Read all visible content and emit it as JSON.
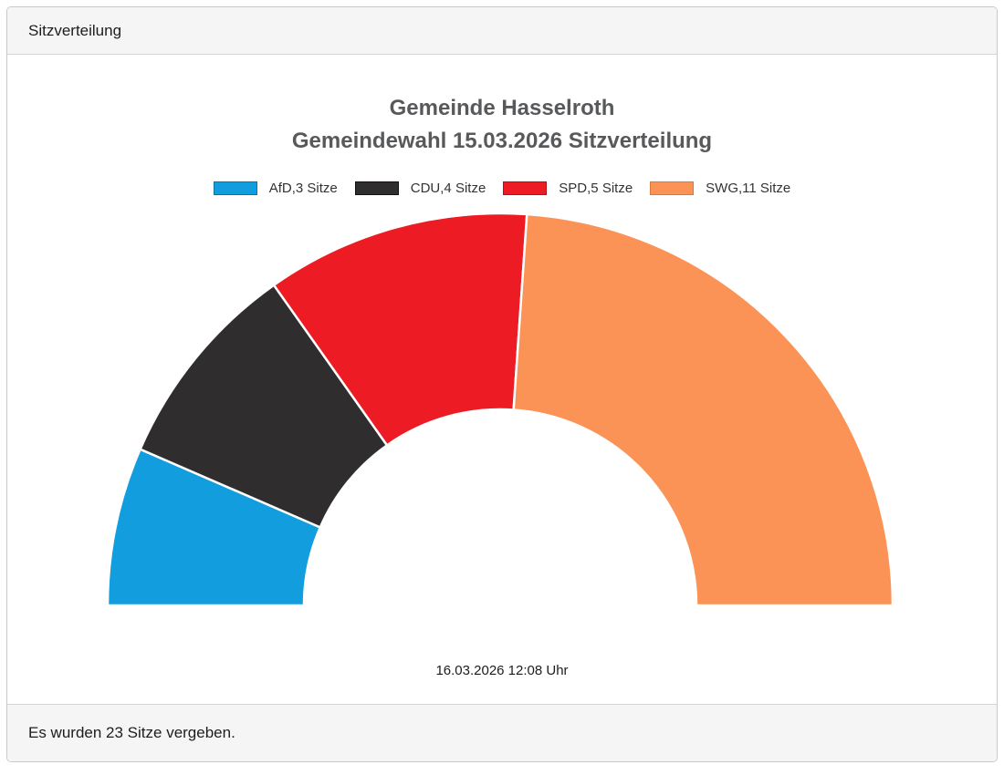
{
  "header": {
    "title": "Sitzverteilung"
  },
  "footer": {
    "text": "Es wurden 23 Sitze vergeben."
  },
  "chart_data": {
    "type": "pie",
    "variant": "half-donut",
    "title": "Gemeinde Hasselroth",
    "subtitle": "Gemeindewahl 15.03.2026 Sitzverteilung",
    "timestamp": "16.03.2026 12:08 Uhr",
    "total_seats": 23,
    "start_angle_deg": 180,
    "end_angle_deg": 0,
    "separator_color": "#ffffff",
    "title_color": "#58595b",
    "series": [
      {
        "name": "AfD",
        "seats": 3,
        "label": "AfD,3 Sitze",
        "color": "#119dde",
        "border_color": "#0c74a4"
      },
      {
        "name": "CDU",
        "seats": 4,
        "label": "CDU,4 Sitze",
        "color": "#2f2d2e",
        "border_color": "#111111"
      },
      {
        "name": "SPD",
        "seats": 5,
        "label": "SPD,5 Sitze",
        "color": "#ed1c24",
        "border_color": "#b0131a"
      },
      {
        "name": "SWG",
        "seats": 11,
        "label": "SWG,11 Sitze",
        "color": "#fb9256",
        "border_color": "#de7738"
      }
    ]
  }
}
